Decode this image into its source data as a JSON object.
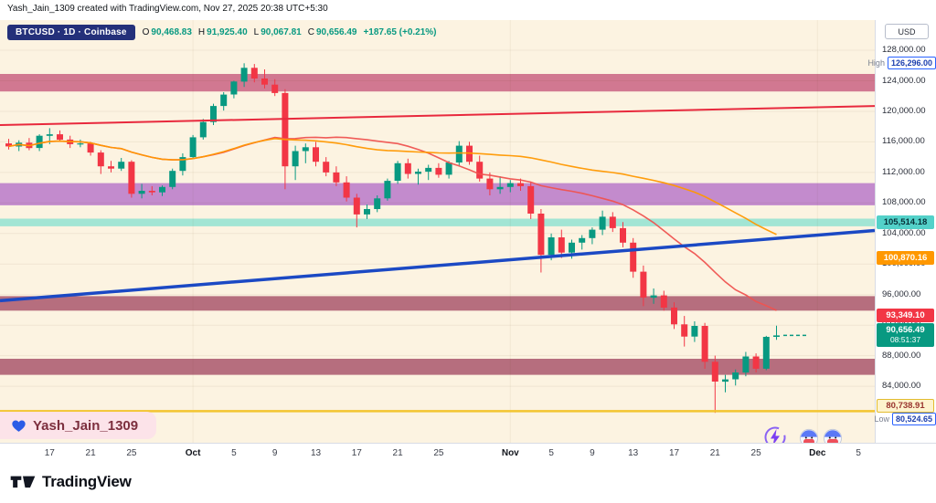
{
  "attribution": "Yash_Jain_1309 created with TradingView.com, Nov 27, 2025 20:38 UTC+5:30",
  "legend": {
    "symbol": "BTCUSD · 1D · Coinbase",
    "o_label": "O",
    "o_value": "90,468.83",
    "h_label": "H",
    "h_value": "91,925.40",
    "l_label": "L",
    "l_value": "90,067.81",
    "c_label": "C",
    "c_value": "90,656.49",
    "change_value": "+187.65 (+0.21%)"
  },
  "watermark": {
    "name": "Yash_Jain_1309",
    "heart_color": "#2b5ce6"
  },
  "price_axis": {
    "currency": "USD",
    "gridline_labels": [
      "128,000.00",
      "124,000.00",
      "120,000.00",
      "116,000.00",
      "112,000.00",
      "108,000.00",
      "104,000.00",
      "100,000.00",
      "96,000.00",
      "92,000.00",
      "88,000.00",
      "84,000.00"
    ],
    "gridline_prices": [
      128000,
      124000,
      120000,
      116000,
      112000,
      108000,
      104000,
      100000,
      96000,
      92000,
      88000,
      84000
    ],
    "high_label": {
      "tag": "High",
      "value": "126,296.00",
      "price": 126296.0
    },
    "low_label": {
      "tag": "Low",
      "value": "80,524.65",
      "price": 80524.65
    },
    "teal_label": {
      "value": "105,514.18",
      "price": 105514.18,
      "bg": "#53d1c9",
      "text_color": "#073038"
    },
    "orange_label": {
      "value": "100,870.16",
      "price": 100870.16,
      "bg": "#ff9800",
      "text_color": "#ffffff"
    },
    "red_label": {
      "value": "93,349.10",
      "price": 93349.1,
      "bg": "#f23645",
      "text_color": "#ffffff"
    },
    "current_label": {
      "value": "90,656.49",
      "countdown": "08:51:37",
      "price": 90656.49,
      "bg": "#089981",
      "text_color": "#ffffff"
    },
    "yellow_label": {
      "value": "80,738.91",
      "price": 80738.91,
      "bg": "#fdf3cd",
      "border": "#e2bc2f",
      "text_color": "#99342e"
    }
  },
  "time_axis": {
    "labels": [
      {
        "text": "17",
        "index": 4
      },
      {
        "text": "21",
        "index": 8
      },
      {
        "text": "25",
        "index": 12
      },
      {
        "text": "Oct",
        "index": 18
      },
      {
        "text": "5",
        "index": 22
      },
      {
        "text": "9",
        "index": 26
      },
      {
        "text": "13",
        "index": 30
      },
      {
        "text": "17",
        "index": 34
      },
      {
        "text": "21",
        "index": 38
      },
      {
        "text": "25",
        "index": 42
      },
      {
        "text": "Nov",
        "index": 49
      },
      {
        "text": "5",
        "index": 53
      },
      {
        "text": "9",
        "index": 57
      },
      {
        "text": "13",
        "index": 61
      },
      {
        "text": "17",
        "index": 65
      },
      {
        "text": "21",
        "index": 69
      },
      {
        "text": "25",
        "index": 73
      },
      {
        "text": "Dec",
        "index": 79
      },
      {
        "text": "5",
        "index": 83
      }
    ]
  },
  "footer": {
    "logo_text": "TradingView"
  },
  "chart_data": {
    "type": "candlestick",
    "title": "BTCUSD 1D Coinbase",
    "symbol": "BTCUSD",
    "interval": "1D",
    "exchange": "Coinbase",
    "ylim": [
      76600,
      129200
    ],
    "high": 126296.0,
    "low": 80524.65,
    "last_close": 90656.49,
    "colors": {
      "up": "#089981",
      "down": "#f23645",
      "ma_fast": "#ef5350",
      "ma_slow": "#ff9800",
      "background": "#fcf3e1"
    },
    "moving_averages": [
      {
        "window": 20,
        "color_key": "ma_fast",
        "last_value": 93349.1
      },
      {
        "window": 50,
        "color_key": "ma_slow",
        "last_value": 100870.16
      }
    ],
    "zones": [
      {
        "name": "supply-upper",
        "from": 122600,
        "to": 124900,
        "color": "rgba(201,98,130,0.85)"
      },
      {
        "name": "supply-purple",
        "from": 107700,
        "to": 110600,
        "color": "rgba(178,109,199,0.78)"
      },
      {
        "name": "teal-band",
        "from": 104950,
        "to": 105950,
        "color": "rgba(88,216,203,0.55)"
      },
      {
        "name": "demand-mid",
        "from": 93900,
        "to": 95800,
        "color": "rgba(169,86,108,0.85)"
      },
      {
        "name": "demand-lower",
        "from": 85500,
        "to": 87600,
        "color": "rgba(169,86,108,0.85)"
      }
    ],
    "trendlines": [
      {
        "name": "red-trendline",
        "price_start": 118200,
        "price_end": 120700,
        "color": "#e8293d",
        "width": 2
      },
      {
        "name": "blue-trendline",
        "price_start": 95200,
        "price_end": 104400,
        "color": "#1b49c4",
        "width": 3.5
      }
    ],
    "price_lines": [
      {
        "name": "yellow-support-line",
        "price": 80738.91,
        "color": "#f3c52f",
        "width": 2.5
      }
    ],
    "candles": [
      [
        "2025-09-13",
        115800,
        116400,
        115000,
        115400
      ],
      [
        "2025-09-14",
        115400,
        116200,
        114800,
        115900
      ],
      [
        "2025-09-15",
        115900,
        116500,
        114900,
        115200
      ],
      [
        "2025-09-16",
        115200,
        117000,
        114800,
        116800
      ],
      [
        "2025-09-17",
        116800,
        117800,
        115700,
        117000
      ],
      [
        "2025-09-18",
        117000,
        117500,
        116000,
        116300
      ],
      [
        "2025-09-19",
        116300,
        116800,
        115200,
        115700
      ],
      [
        "2025-09-20",
        115700,
        116300,
        115300,
        115800
      ],
      [
        "2025-09-21",
        115800,
        116000,
        114200,
        114600
      ],
      [
        "2025-09-22",
        114600,
        114900,
        111800,
        112800
      ],
      [
        "2025-09-23",
        112800,
        113500,
        112000,
        112500
      ],
      [
        "2025-09-24",
        112500,
        113900,
        112200,
        113400
      ],
      [
        "2025-09-25",
        113400,
        113600,
        108700,
        109200
      ],
      [
        "2025-09-26",
        109200,
        110500,
        108600,
        109600
      ],
      [
        "2025-09-27",
        109600,
        110200,
        109000,
        109400
      ],
      [
        "2025-09-28",
        109400,
        110300,
        108900,
        110100
      ],
      [
        "2025-09-29",
        110100,
        112500,
        109800,
        112200
      ],
      [
        "2025-09-30",
        112200,
        114500,
        111600,
        114000
      ],
      [
        "2025-10-01",
        114000,
        116900,
        113800,
        116600
      ],
      [
        "2025-10-02",
        116600,
        119000,
        116300,
        118600
      ],
      [
        "2025-10-03",
        118600,
        121000,
        118200,
        120700
      ],
      [
        "2025-10-04",
        120700,
        122500,
        120100,
        122200
      ],
      [
        "2025-10-05",
        122200,
        124000,
        121700,
        123900
      ],
      [
        "2025-10-06",
        123900,
        126296,
        123200,
        125700
      ],
      [
        "2025-10-07",
        125700,
        126200,
        123800,
        124300
      ],
      [
        "2025-10-08",
        124300,
        125500,
        123000,
        123500
      ],
      [
        "2025-10-09",
        123500,
        124200,
        122000,
        122400
      ],
      [
        "2025-10-10",
        122400,
        122900,
        109800,
        112800
      ],
      [
        "2025-10-11",
        112800,
        115500,
        111000,
        114800
      ],
      [
        "2025-10-12",
        114800,
        115800,
        113200,
        115300
      ],
      [
        "2025-10-13",
        115300,
        116000,
        112800,
        113400
      ],
      [
        "2025-10-14",
        113400,
        114000,
        111500,
        112000
      ],
      [
        "2025-10-15",
        112000,
        112800,
        110200,
        110700
      ],
      [
        "2025-10-16",
        110700,
        111500,
        108200,
        108700
      ],
      [
        "2025-10-17",
        108700,
        109200,
        104800,
        106500
      ],
      [
        "2025-10-18",
        106500,
        107800,
        105900,
        107200
      ],
      [
        "2025-10-19",
        107200,
        109000,
        106800,
        108600
      ],
      [
        "2025-10-20",
        108600,
        111200,
        108300,
        110900
      ],
      [
        "2025-10-21",
        110900,
        113500,
        110500,
        113200
      ],
      [
        "2025-10-22",
        113200,
        113800,
        111200,
        111800
      ],
      [
        "2025-10-23",
        111800,
        112500,
        110400,
        112100
      ],
      [
        "2025-10-24",
        112100,
        113000,
        111000,
        112600
      ],
      [
        "2025-10-25",
        112600,
        113200,
        111300,
        111700
      ],
      [
        "2025-10-26",
        111700,
        113500,
        111200,
        113300
      ],
      [
        "2025-10-27",
        113300,
        116100,
        112800,
        115500
      ],
      [
        "2025-10-28",
        115500,
        116000,
        113000,
        113400
      ],
      [
        "2025-10-29",
        113400,
        114200,
        110800,
        111200
      ],
      [
        "2025-10-30",
        111200,
        112000,
        109000,
        109800
      ],
      [
        "2025-10-31",
        109800,
        111500,
        109200,
        110100
      ],
      [
        "2025-11-01",
        110100,
        111000,
        109400,
        110600
      ],
      [
        "2025-11-02",
        110600,
        111200,
        109600,
        110200
      ],
      [
        "2025-11-03",
        110200,
        110800,
        105900,
        106600
      ],
      [
        "2025-11-04",
        106600,
        107200,
        98900,
        101200
      ],
      [
        "2025-11-05",
        101200,
        104000,
        100500,
        103500
      ],
      [
        "2025-11-06",
        103500,
        104500,
        100800,
        101500
      ],
      [
        "2025-11-07",
        101500,
        103200,
        100700,
        102800
      ],
      [
        "2025-11-08",
        102800,
        103800,
        101900,
        103400
      ],
      [
        "2025-11-09",
        103400,
        104800,
        102600,
        104500
      ],
      [
        "2025-11-10",
        104500,
        107000,
        103800,
        106200
      ],
      [
        "2025-11-11",
        106200,
        106800,
        104200,
        104700
      ],
      [
        "2025-11-12",
        104700,
        105500,
        102200,
        102800
      ],
      [
        "2025-11-13",
        102800,
        103400,
        98200,
        99000
      ],
      [
        "2025-11-14",
        99000,
        99800,
        94500,
        95600
      ],
      [
        "2025-11-15",
        95600,
        96800,
        94800,
        95900
      ],
      [
        "2025-11-16",
        95900,
        96500,
        93900,
        94300
      ],
      [
        "2025-11-17",
        94300,
        95000,
        91500,
        92100
      ],
      [
        "2025-11-18",
        92100,
        93200,
        89200,
        90500
      ],
      [
        "2025-11-19",
        90500,
        92500,
        89800,
        91900
      ],
      [
        "2025-11-20",
        91900,
        92300,
        86300,
        87200
      ],
      [
        "2025-11-21",
        87200,
        88000,
        80524.65,
        84600
      ],
      [
        "2025-11-22",
        84600,
        85500,
        83200,
        84900
      ],
      [
        "2025-11-23",
        84900,
        86200,
        84100,
        85800
      ],
      [
        "2025-11-24",
        85800,
        88500,
        85300,
        87900
      ],
      [
        "2025-11-25",
        87900,
        88300,
        85800,
        86300
      ],
      [
        "2025-11-26",
        86300,
        90600,
        86100,
        90468.84
      ],
      [
        "2025-11-27",
        90468.83,
        91925.4,
        90067.81,
        90656.49
      ]
    ]
  }
}
